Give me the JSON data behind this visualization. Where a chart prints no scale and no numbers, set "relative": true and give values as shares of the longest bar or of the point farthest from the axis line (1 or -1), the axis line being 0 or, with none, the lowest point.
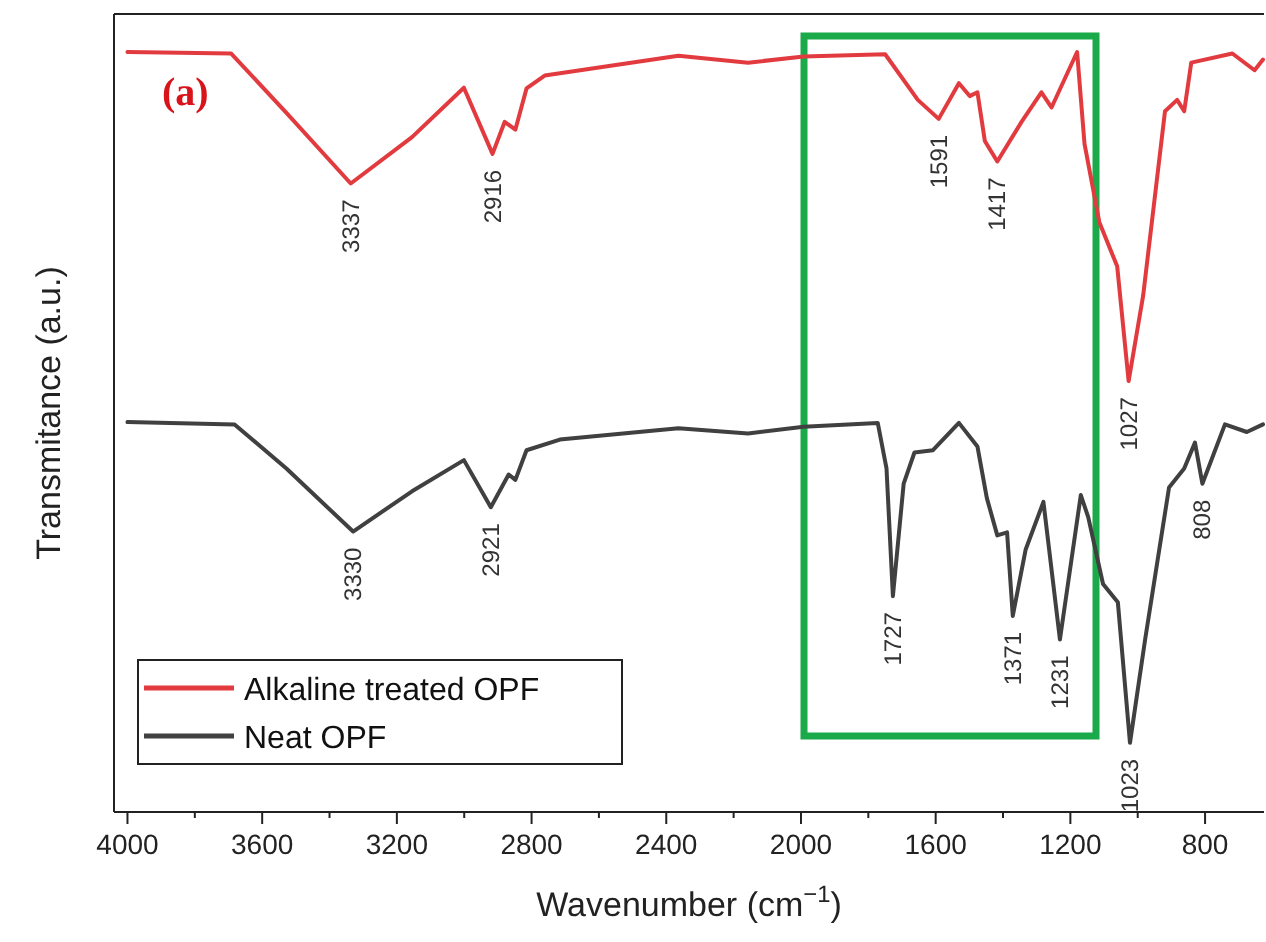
{
  "chart_data": {
    "type": "line",
    "relative": true,
    "xlabel": "Wavenumber (cm$^{−1}$)",
    "ylabel": "Transmitance (a.u.)",
    "xlim": [
      4040,
      625
    ],
    "xticks": [
      4000,
      {
        "value": 3800,
        "label": null
      },
      3600,
      {
        "value": 3400,
        "label": null
      },
      3200,
      {
        "value": 3000,
        "label": null
      },
      2800,
      {
        "value": 2600,
        "label": null
      },
      2400,
      {
        "value": 2200,
        "label": null
      },
      2000,
      {
        "value": 1800,
        "label": null
      },
      1600,
      {
        "value": 1400,
        "label": null
      },
      1200,
      {
        "value": 1000,
        "label": null
      },
      800
    ],
    "legend": "bottom left",
    "grid": false,
    "line_style": "solid",
    "marker": "none",
    "series": [
      {
        "name": "Alkaline treated OPF",
        "color": "#e23b3f",
        "x": [
          4000,
          3692,
          3528,
          3337,
          3155,
          3001,
          2916,
          2880,
          2848,
          2815,
          2761,
          2364,
          2157,
          1992,
          1750,
          1653,
          1591,
          1531,
          1499,
          1476,
          1454,
          1417,
          1345,
          1286,
          1256,
          1180,
          1158,
          1114,
          1061,
          1027,
          984,
          919,
          883,
          862,
          841,
          719,
          653,
          628
        ],
        "values": [
          1.0,
          0.998,
          0.92,
          0.827,
          0.888,
          0.953,
          0.866,
          0.908,
          0.898,
          0.952,
          0.969,
          0.995,
          0.986,
          0.994,
          0.997,
          0.937,
          0.912,
          0.959,
          0.942,
          0.947,
          0.883,
          0.856,
          0.908,
          0.947,
          0.927,
          1.0,
          0.879,
          0.776,
          0.718,
          0.567,
          0.679,
          0.922,
          0.937,
          0.922,
          0.986,
          0.998,
          0.976,
          0.99
        ]
      },
      {
        "name": "Neat OPF",
        "color": "#404040",
        "x": [
          4000,
          3682,
          3528,
          3330,
          3155,
          3001,
          2921,
          2868,
          2848,
          2815,
          2716,
          2364,
          2157,
          1992,
          1772,
          1746,
          1727,
          1695,
          1663,
          1608,
          1531,
          1476,
          1448,
          1417,
          1388,
          1371,
          1333,
          1280,
          1231,
          1169,
          1147,
          1103,
          1059,
          1023,
          978,
          907,
          862,
          830,
          808,
          741,
          676,
          628
        ],
        "values": [
          0.513,
          0.51,
          0.452,
          0.369,
          0.422,
          0.463,
          0.401,
          0.444,
          0.437,
          0.476,
          0.49,
          0.505,
          0.498,
          0.507,
          0.512,
          0.452,
          0.284,
          0.432,
          0.473,
          0.476,
          0.512,
          0.481,
          0.413,
          0.364,
          0.368,
          0.258,
          0.345,
          0.408,
          0.227,
          0.417,
          0.388,
          0.3,
          0.276,
          0.091,
          0.227,
          0.427,
          0.452,
          0.486,
          0.432,
          0.51,
          0.5,
          0.51
        ]
      }
    ],
    "annotations": [
      "(a)",
      {
        "text": "3337",
        "x": 3337,
        "y": 0.827
      },
      {
        "text": "2916",
        "x": 2916,
        "y": 0.866
      },
      {
        "text": "1591",
        "x": 1591,
        "y": 0.912
      },
      {
        "text": "1417",
        "x": 1417,
        "y": 0.856
      },
      {
        "text": "1027",
        "x": 1027,
        "y": 0.567
      },
      {
        "text": "3330",
        "x": 3330,
        "y": 0.369
      },
      {
        "text": "2921",
        "x": 2921,
        "y": 0.401
      },
      {
        "text": "1727",
        "x": 1727,
        "y": 0.284
      },
      {
        "text": "1371",
        "x": 1371,
        "y": 0.258
      },
      {
        "text": "1231",
        "x": 1231,
        "y": 0.227
      },
      {
        "text": "1023",
        "x": 1023,
        "y": 0.091
      },
      {
        "text": "808",
        "x": 808,
        "y": 0.432
      }
    ]
  }
}
